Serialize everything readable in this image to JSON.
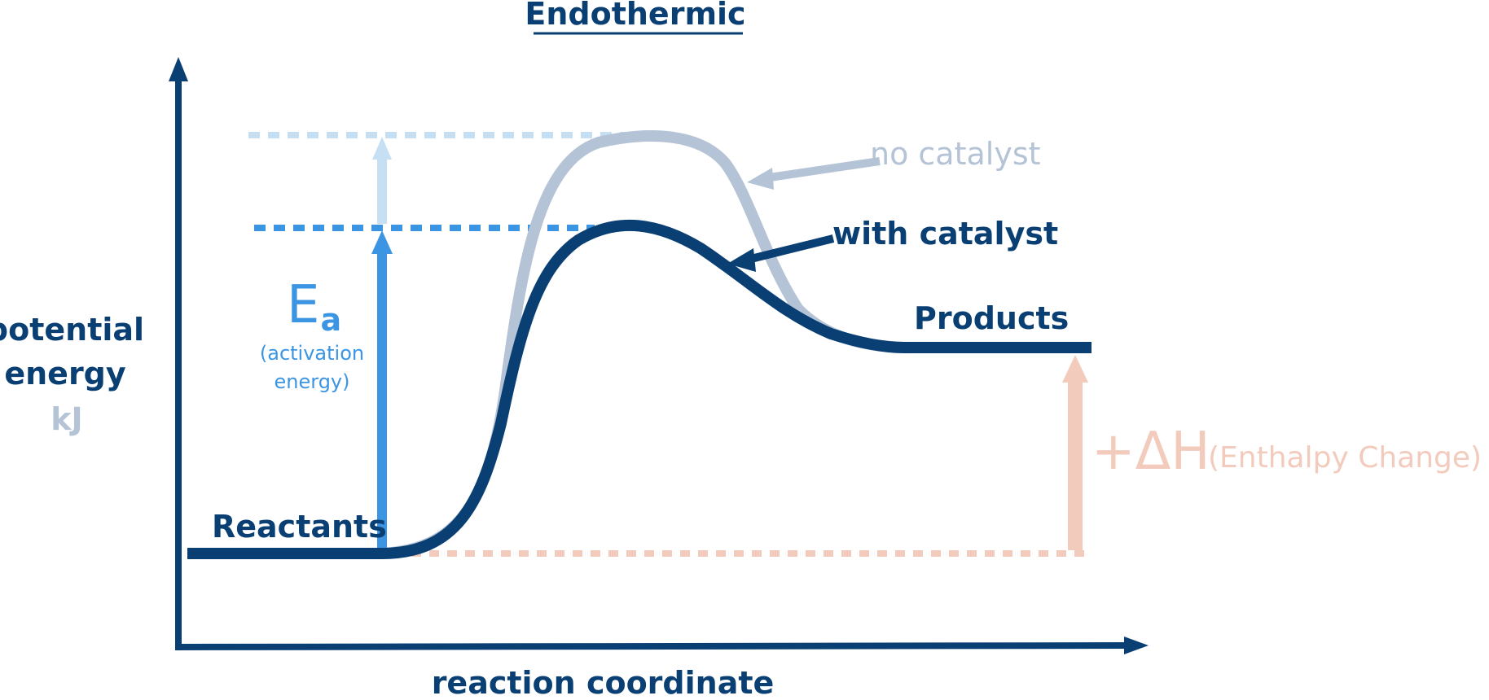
{
  "title": "Endothermic",
  "y_axis": {
    "line1": "potential",
    "line2": "energy",
    "unit": "kJ"
  },
  "x_axis": {
    "label": "reaction coordinate"
  },
  "labels": {
    "reactants": "Reactants",
    "products": "Products",
    "no_catalyst": "no catalyst",
    "with_catalyst": "with catalyst",
    "ea_main": "E",
    "ea_sub": "a",
    "ea_note_line1": "(activation",
    "ea_note_line2": "energy)",
    "dh_main": "+ΔH",
    "dh_note": "(Enthalpy Change)"
  },
  "colors": {
    "navy": "#0a3f74",
    "pale_blue": "#b4c3d5",
    "bright_blue": "#3c95e3",
    "light_blue": "#c6dff3",
    "salmon": "#f2cbbd"
  }
}
